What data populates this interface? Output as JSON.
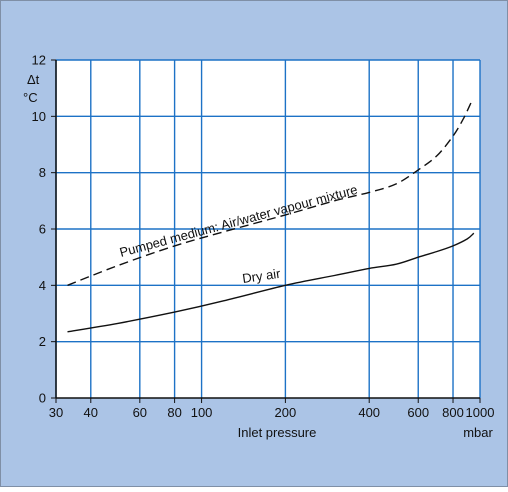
{
  "colors": {
    "background": "#abc4e6",
    "plot_area": "#ffffff",
    "grid": "#1d72c6",
    "axis": "#111111",
    "curve": "#111111",
    "border": "#7f8fa6"
  },
  "chart_data": {
    "type": "line",
    "title": "",
    "xlabel": "Inlet pressure",
    "xunit": "mbar",
    "ylabel": "Δt",
    "yunit": "°C",
    "x_scale": "log",
    "xlim": [
      30,
      1000
    ],
    "ylim": [
      0,
      12
    ],
    "grid": true,
    "x_ticks": [
      30,
      40,
      60,
      80,
      100,
      200,
      400,
      600,
      800,
      1000
    ],
    "x_tick_labels": [
      "30",
      "40",
      "60",
      "80",
      "100",
      "200",
      "400",
      "600",
      "800",
      "1000"
    ],
    "y_ticks": [
      0,
      2,
      4,
      6,
      8,
      10,
      12
    ],
    "y_tick_labels": [
      "0",
      "2",
      "4",
      "6",
      "8",
      "10",
      "12"
    ],
    "series": [
      {
        "name": "Pumped medium: Air/water vapour mixture",
        "style": "dashed",
        "x": [
          33,
          50,
          80,
          120,
          200,
          300,
          400,
          500,
          600,
          700,
          800,
          870,
          930
        ],
        "y": [
          4.0,
          4.7,
          5.4,
          5.9,
          6.5,
          7.0,
          7.3,
          7.6,
          8.1,
          8.6,
          9.3,
          9.9,
          10.5
        ]
      },
      {
        "name": "Dry air",
        "style": "solid",
        "x": [
          33,
          50,
          80,
          120,
          200,
          300,
          400,
          500,
          600,
          700,
          800,
          900,
          950
        ],
        "y": [
          2.35,
          2.65,
          3.05,
          3.45,
          4.0,
          4.35,
          4.6,
          4.75,
          5.0,
          5.2,
          5.4,
          5.65,
          5.85
        ]
      }
    ]
  }
}
